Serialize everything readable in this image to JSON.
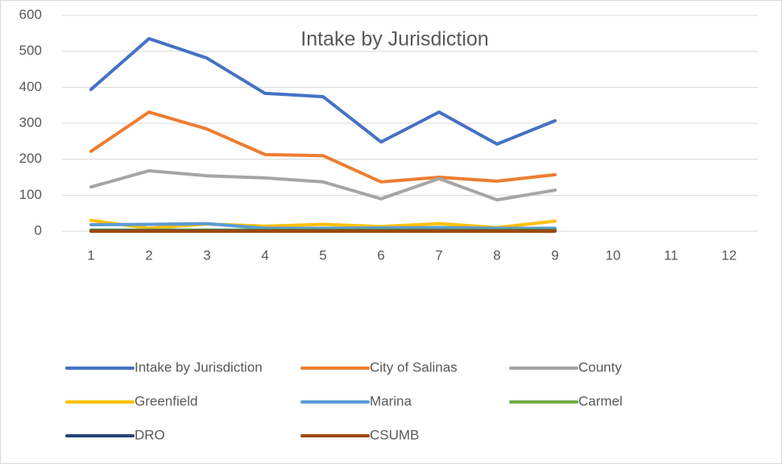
{
  "chart_data": {
    "type": "line",
    "title": "Intake by Jurisdiction",
    "categories": [
      1,
      2,
      3,
      4,
      5,
      6,
      7,
      8,
      9,
      10,
      11,
      12
    ],
    "series": [
      {
        "name": "Intake by Jurisdiction",
        "color": "#4472c4",
        "values": [
          394,
          535,
          481,
          383,
          374,
          248,
          331,
          242,
          307,
          null,
          null,
          null
        ]
      },
      {
        "name": "City of Salinas",
        "color": "#ed7d31",
        "values": [
          222,
          331,
          284,
          213,
          210,
          137,
          150,
          139,
          157,
          null,
          null,
          null
        ]
      },
      {
        "name": "County",
        "color": "#a5a5a5",
        "values": [
          123,
          168,
          154,
          148,
          137,
          90,
          146,
          87,
          114,
          null,
          null,
          null
        ]
      },
      {
        "name": "Greenfield",
        "color": "#ffc000",
        "values": [
          30,
          8,
          20,
          14,
          19,
          13,
          21,
          10,
          28,
          null,
          null,
          null
        ]
      },
      {
        "name": "Marina",
        "color": "#5b9bd5",
        "values": [
          18,
          19,
          21,
          8,
          8,
          9,
          10,
          8,
          8,
          null,
          null,
          null
        ]
      },
      {
        "name": "Carmel",
        "color": "#70ad47",
        "values": [
          3,
          3,
          3,
          3,
          3,
          3,
          3,
          3,
          3,
          null,
          null,
          null
        ]
      },
      {
        "name": "DRO",
        "color": "#264478",
        "values": [
          1,
          1,
          1,
          1,
          1,
          1,
          1,
          1,
          1,
          null,
          null,
          null
        ]
      },
      {
        "name": "CSUMB",
        "color": "#9e480e",
        "values": [
          0,
          0,
          0,
          0,
          0,
          0,
          0,
          0,
          0,
          null,
          null,
          null
        ]
      }
    ],
    "ylim": [
      0,
      600
    ],
    "yticks": [
      0,
      100,
      200,
      300,
      400,
      500,
      600
    ],
    "grid": true,
    "legend": "bottom"
  }
}
